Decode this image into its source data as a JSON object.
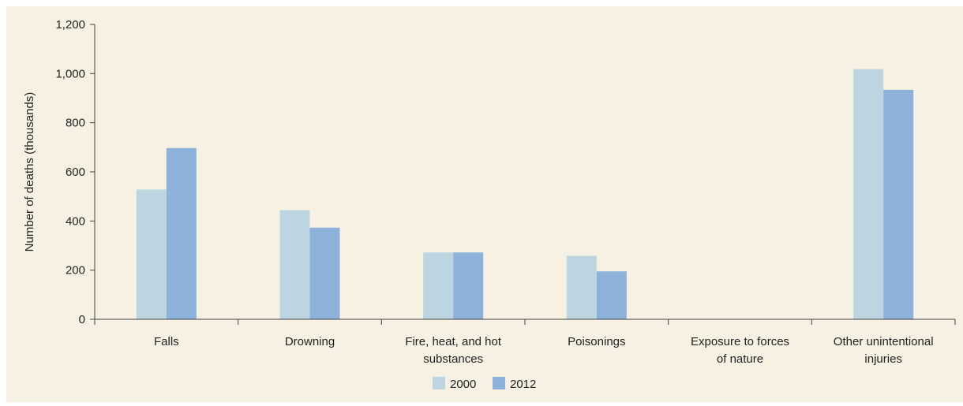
{
  "chart_data": {
    "type": "bar",
    "title": "",
    "xlabel": "",
    "ylabel": "Number of deaths (thousands)",
    "ylim": [
      0,
      1200
    ],
    "yticks": [
      "0",
      "200",
      "400",
      "600",
      "800",
      "1,000",
      "1,200"
    ],
    "ytick_values": [
      0,
      200,
      400,
      600,
      800,
      1000,
      1200
    ],
    "categories": [
      [
        "Falls"
      ],
      [
        "Drowning"
      ],
      [
        "Fire, heat, and hot",
        "substances"
      ],
      [
        "Poisonings"
      ],
      [
        "Exposure to forces",
        "of nature"
      ],
      [
        "Other unintentional",
        "injuries"
      ]
    ],
    "series": [
      {
        "name": "2000",
        "color": "#bdd5e1",
        "values": [
          528,
          444,
          272,
          258,
          0,
          1018
        ]
      },
      {
        "name": "2012",
        "color": "#8db2d9",
        "values": [
          697,
          373,
          272,
          195,
          0,
          934
        ]
      }
    ],
    "legend": "bottom-center",
    "grid": false
  }
}
